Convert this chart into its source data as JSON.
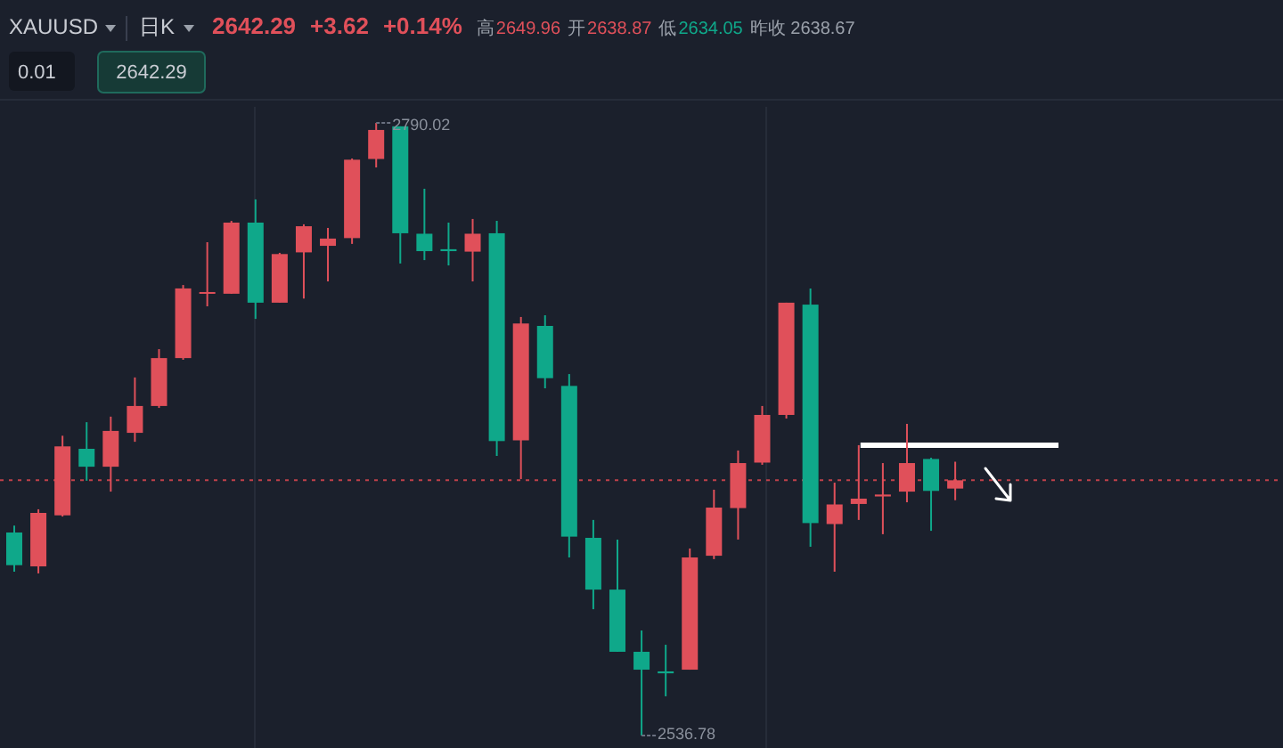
{
  "chart_data": {
    "type": "candlestick",
    "title": "XAUUSD",
    "subtitle": "日K",
    "annotations": [
      "2642.29",
      "+3.62",
      "+0.14%",
      "高",
      "2649.96",
      "开",
      "2638.87",
      "低",
      "2634.05",
      "昨收 2638.67",
      "0.01",
      "2642.29",
      "2790.02",
      "2536.78"
    ],
    "categories": [
      null,
      null,
      null,
      null,
      null,
      null,
      null,
      null,
      null,
      null,
      null,
      null,
      null,
      null,
      null,
      null,
      null,
      null,
      null,
      null,
      null,
      null,
      null,
      null,
      null,
      null,
      null,
      null,
      null,
      null,
      null,
      null,
      null,
      null,
      null,
      null,
      null,
      null,
      null,
      null
    ],
    "ohlc": [
      [
        2620.7,
        2623.6,
        2604.5,
        2607.2
      ],
      [
        2606.7,
        2630.3,
        2603.8,
        2628.8
      ],
      [
        2627.8,
        2660.7,
        2627.3,
        2656.3
      ],
      [
        2655.3,
        2666.3,
        2642.1,
        2647.9
      ],
      [
        2647.9,
        2668.6,
        2637.6,
        2662.7
      ],
      [
        2661.9,
        2684.8,
        2658.2,
        2673.0
      ],
      [
        2673.0,
        2696.5,
        2672.2,
        2692.8
      ],
      [
        2692.8,
        2723.0,
        2692.1,
        2721.6
      ],
      [
        2719.4,
        2740.7,
        2714.2,
        2720.1
      ],
      [
        2719.4,
        2749.5,
        2719.4,
        2748.8
      ],
      [
        2748.8,
        2758.4,
        2709.0,
        2715.7
      ],
      [
        2715.7,
        2736.3,
        2715.7,
        2735.8
      ],
      [
        2736.5,
        2748.1,
        2717.4,
        2747.3
      ],
      [
        2739.2,
        2746.6,
        2724.5,
        2742.2
      ],
      [
        2742.4,
        2775.3,
        2740.0,
        2774.8
      ],
      [
        2775.1,
        2790.02,
        2771.6,
        2787.1
      ],
      [
        2788.6,
        2788.6,
        2731.9,
        2744.4
      ],
      [
        2744.2,
        2762.8,
        2733.3,
        2737.0
      ],
      [
        2737.8,
        2748.8,
        2731.1,
        2737.0
      ],
      [
        2736.8,
        2750.3,
        2724.5,
        2744.2
      ],
      [
        2744.4,
        2749.5,
        2652.4,
        2658.5
      ],
      [
        2658.8,
        2709.8,
        2642.8,
        2707.1
      ],
      [
        2706.1,
        2710.5,
        2680.3,
        2684.5
      ],
      [
        2681.3,
        2686.2,
        2610.4,
        2619.0
      ],
      [
        2618.5,
        2625.9,
        2589.0,
        2597.1
      ],
      [
        2597.1,
        2617.8,
        2571.4,
        2571.4
      ],
      [
        2571.4,
        2580.2,
        2536.78,
        2564.0
      ],
      [
        2563.3,
        2574.3,
        2553.0,
        2562.5
      ],
      [
        2564.0,
        2614.1,
        2564.0,
        2610.4
      ],
      [
        2611.1,
        2638.4,
        2609.7,
        2631.0
      ],
      [
        2630.8,
        2654.6,
        2617.8,
        2649.4
      ],
      [
        2649.6,
        2673.0,
        2648.7,
        2669.3
      ],
      [
        2669.3,
        2715.7,
        2667.8,
        2715.7
      ],
      [
        2714.9,
        2721.6,
        2614.8,
        2624.6
      ],
      [
        2624.2,
        2641.3,
        2604.5,
        2632.3
      ],
      [
        2632.5,
        2656.8,
        2625.9,
        2634.7
      ],
      [
        2635.6,
        2649.4,
        2620.0,
        2636.4
      ],
      [
        2637.6,
        2665.6,
        2633.2,
        2649.4
      ],
      [
        2651.1,
        2651.6,
        2621.4,
        2637.9
      ],
      [
        2638.87,
        2649.96,
        2634.05,
        2642.29
      ]
    ],
    "colors": [
      "#0fa88a",
      "#e0505a",
      "#e0505a",
      "#0fa88a",
      "#e0505a",
      "#e0505a",
      "#e0505a",
      "#e0505a",
      "#e0505a",
      "#e0505a",
      "#0fa88a",
      "#e0505a",
      "#e0505a",
      "#e0505a",
      "#e0505a",
      "#e0505a",
      "#0fa88a",
      "#0fa88a",
      "#0fa88a",
      "#e0505a",
      "#0fa88a",
      "#e0505a",
      "#0fa88a",
      "#0fa88a",
      "#0fa88a",
      "#0fa88a",
      "#0fa88a",
      "#0fa88a",
      "#e0505a",
      "#e0505a",
      "#e0505a",
      "#e0505a",
      "#e0505a",
      "#0fa88a",
      "#e0505a",
      "#e0505a",
      "#e0505a",
      "#e0505a",
      "#0fa88a",
      "#e0505a"
    ],
    "ref_lines": [
      {
        "axis": "y",
        "value": 2642.29,
        "color": "#c0404a",
        "line_style": "dotted"
      },
      {
        "axis": "y",
        "value": 2656.8,
        "color": "#ffffff",
        "line_style": "solid"
      }
    ]
  }
}
